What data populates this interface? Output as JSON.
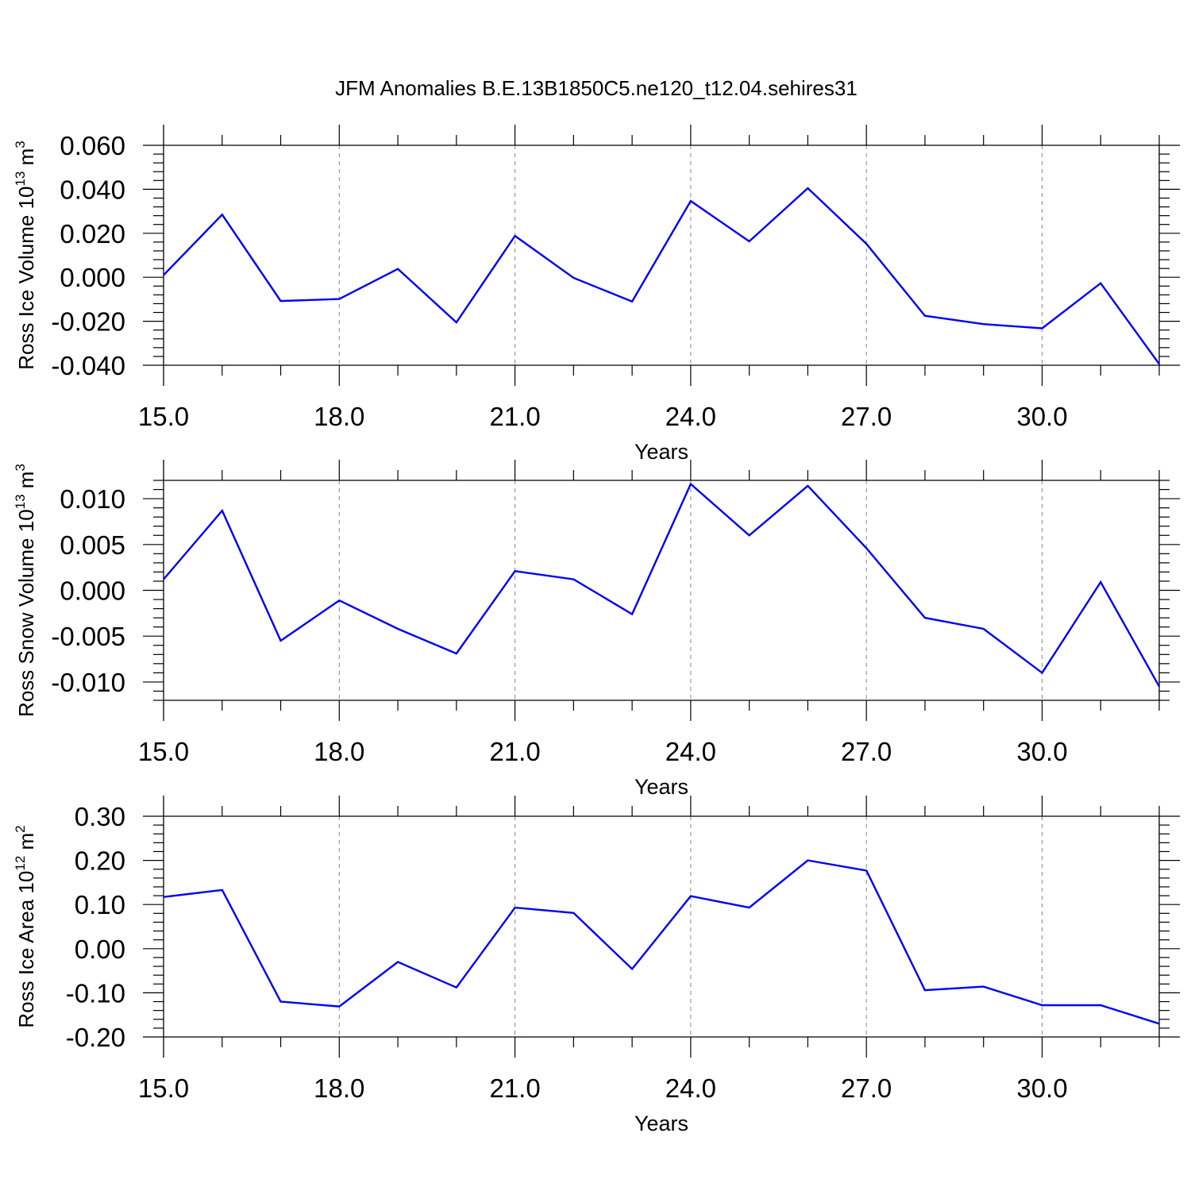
{
  "title": "JFM Anomalies B.E.13B1850C5.ne120_t12.04.sehires31",
  "series_color": "#0000ff",
  "chart_data": [
    {
      "type": "line",
      "ylabel": {
        "main": "Ross Ice Volume 10",
        "exp": "13",
        "unit": " m",
        "unit_exp": "3"
      },
      "xlabel": "Years",
      "xlim": [
        15,
        32
      ],
      "ylim": [
        -0.04,
        0.06
      ],
      "xticks": [
        15,
        18,
        21,
        24,
        27,
        30
      ],
      "xtick_labels": [
        "15.0",
        "18.0",
        "21.0",
        "24.0",
        "27.0",
        "30.0"
      ],
      "yticks": [
        -0.04,
        -0.02,
        0.0,
        0.02,
        0.04,
        0.06
      ],
      "ytick_labels": [
        "-0.040",
        "-0.020",
        "0.000",
        "0.020",
        "0.040",
        "0.060"
      ],
      "grid": "x-dashed",
      "x": [
        15,
        16,
        17,
        18,
        19,
        20,
        21,
        22,
        23,
        24,
        25,
        26,
        27,
        28,
        29,
        30,
        31,
        32
      ],
      "values": [
        0.001,
        0.0285,
        -0.0108,
        -0.0099,
        0.0038,
        -0.0205,
        0.0188,
        -0.0003,
        -0.011,
        0.0347,
        0.0163,
        0.0405,
        0.0152,
        -0.0175,
        -0.0213,
        -0.0232,
        -0.0027,
        -0.0395
      ]
    },
    {
      "type": "line",
      "ylabel": {
        "main": "Ross Snow Volume 10",
        "exp": "13",
        "unit": " m",
        "unit_exp": "3"
      },
      "xlabel": "Years",
      "xlim": [
        15,
        32
      ],
      "ylim": [
        -0.012,
        0.012
      ],
      "xticks": [
        15,
        18,
        21,
        24,
        27,
        30
      ],
      "xtick_labels": [
        "15.0",
        "18.0",
        "21.0",
        "24.0",
        "27.0",
        "30.0"
      ],
      "yticks": [
        -0.01,
        -0.005,
        0.0,
        0.005,
        0.01
      ],
      "ytick_labels": [
        "-0.010",
        "-0.005",
        "0.000",
        "0.005",
        "0.010"
      ],
      "grid": "x-dashed",
      "x": [
        15,
        16,
        17,
        18,
        19,
        20,
        21,
        22,
        23,
        24,
        25,
        26,
        27,
        28,
        29,
        30,
        31,
        32
      ],
      "values": [
        0.0012,
        0.0087,
        -0.0055,
        -0.0011,
        -0.0042,
        -0.0069,
        0.0021,
        0.0012,
        -0.0026,
        0.0116,
        0.006,
        0.0114,
        0.0046,
        -0.003,
        -0.0042,
        -0.009,
        0.0009,
        -0.0105
      ]
    },
    {
      "type": "line",
      "ylabel": {
        "main": "Ross Ice Area 10",
        "exp": "12",
        "unit": " m",
        "unit_exp": "2"
      },
      "xlabel": "Years",
      "xlim": [
        15,
        32
      ],
      "ylim": [
        -0.2,
        0.3
      ],
      "xticks": [
        15,
        18,
        21,
        24,
        27,
        30
      ],
      "xtick_labels": [
        "15.0",
        "18.0",
        "21.0",
        "24.0",
        "27.0",
        "30.0"
      ],
      "yticks": [
        -0.2,
        -0.1,
        0.0,
        0.1,
        0.2,
        0.3
      ],
      "ytick_labels": [
        "-0.20",
        "-0.10",
        "0.00",
        "0.10",
        "0.20",
        "0.30"
      ],
      "grid": "x-dashed",
      "x": [
        15,
        16,
        17,
        18,
        19,
        20,
        21,
        22,
        23,
        24,
        25,
        26,
        27,
        28,
        29,
        30,
        31,
        32
      ],
      "values": [
        0.117,
        0.133,
        -0.12,
        -0.131,
        -0.03,
        -0.088,
        0.093,
        0.081,
        -0.046,
        0.119,
        0.093,
        0.2,
        0.177,
        -0.094,
        -0.086,
        -0.128,
        -0.128,
        -0.17
      ]
    }
  ]
}
